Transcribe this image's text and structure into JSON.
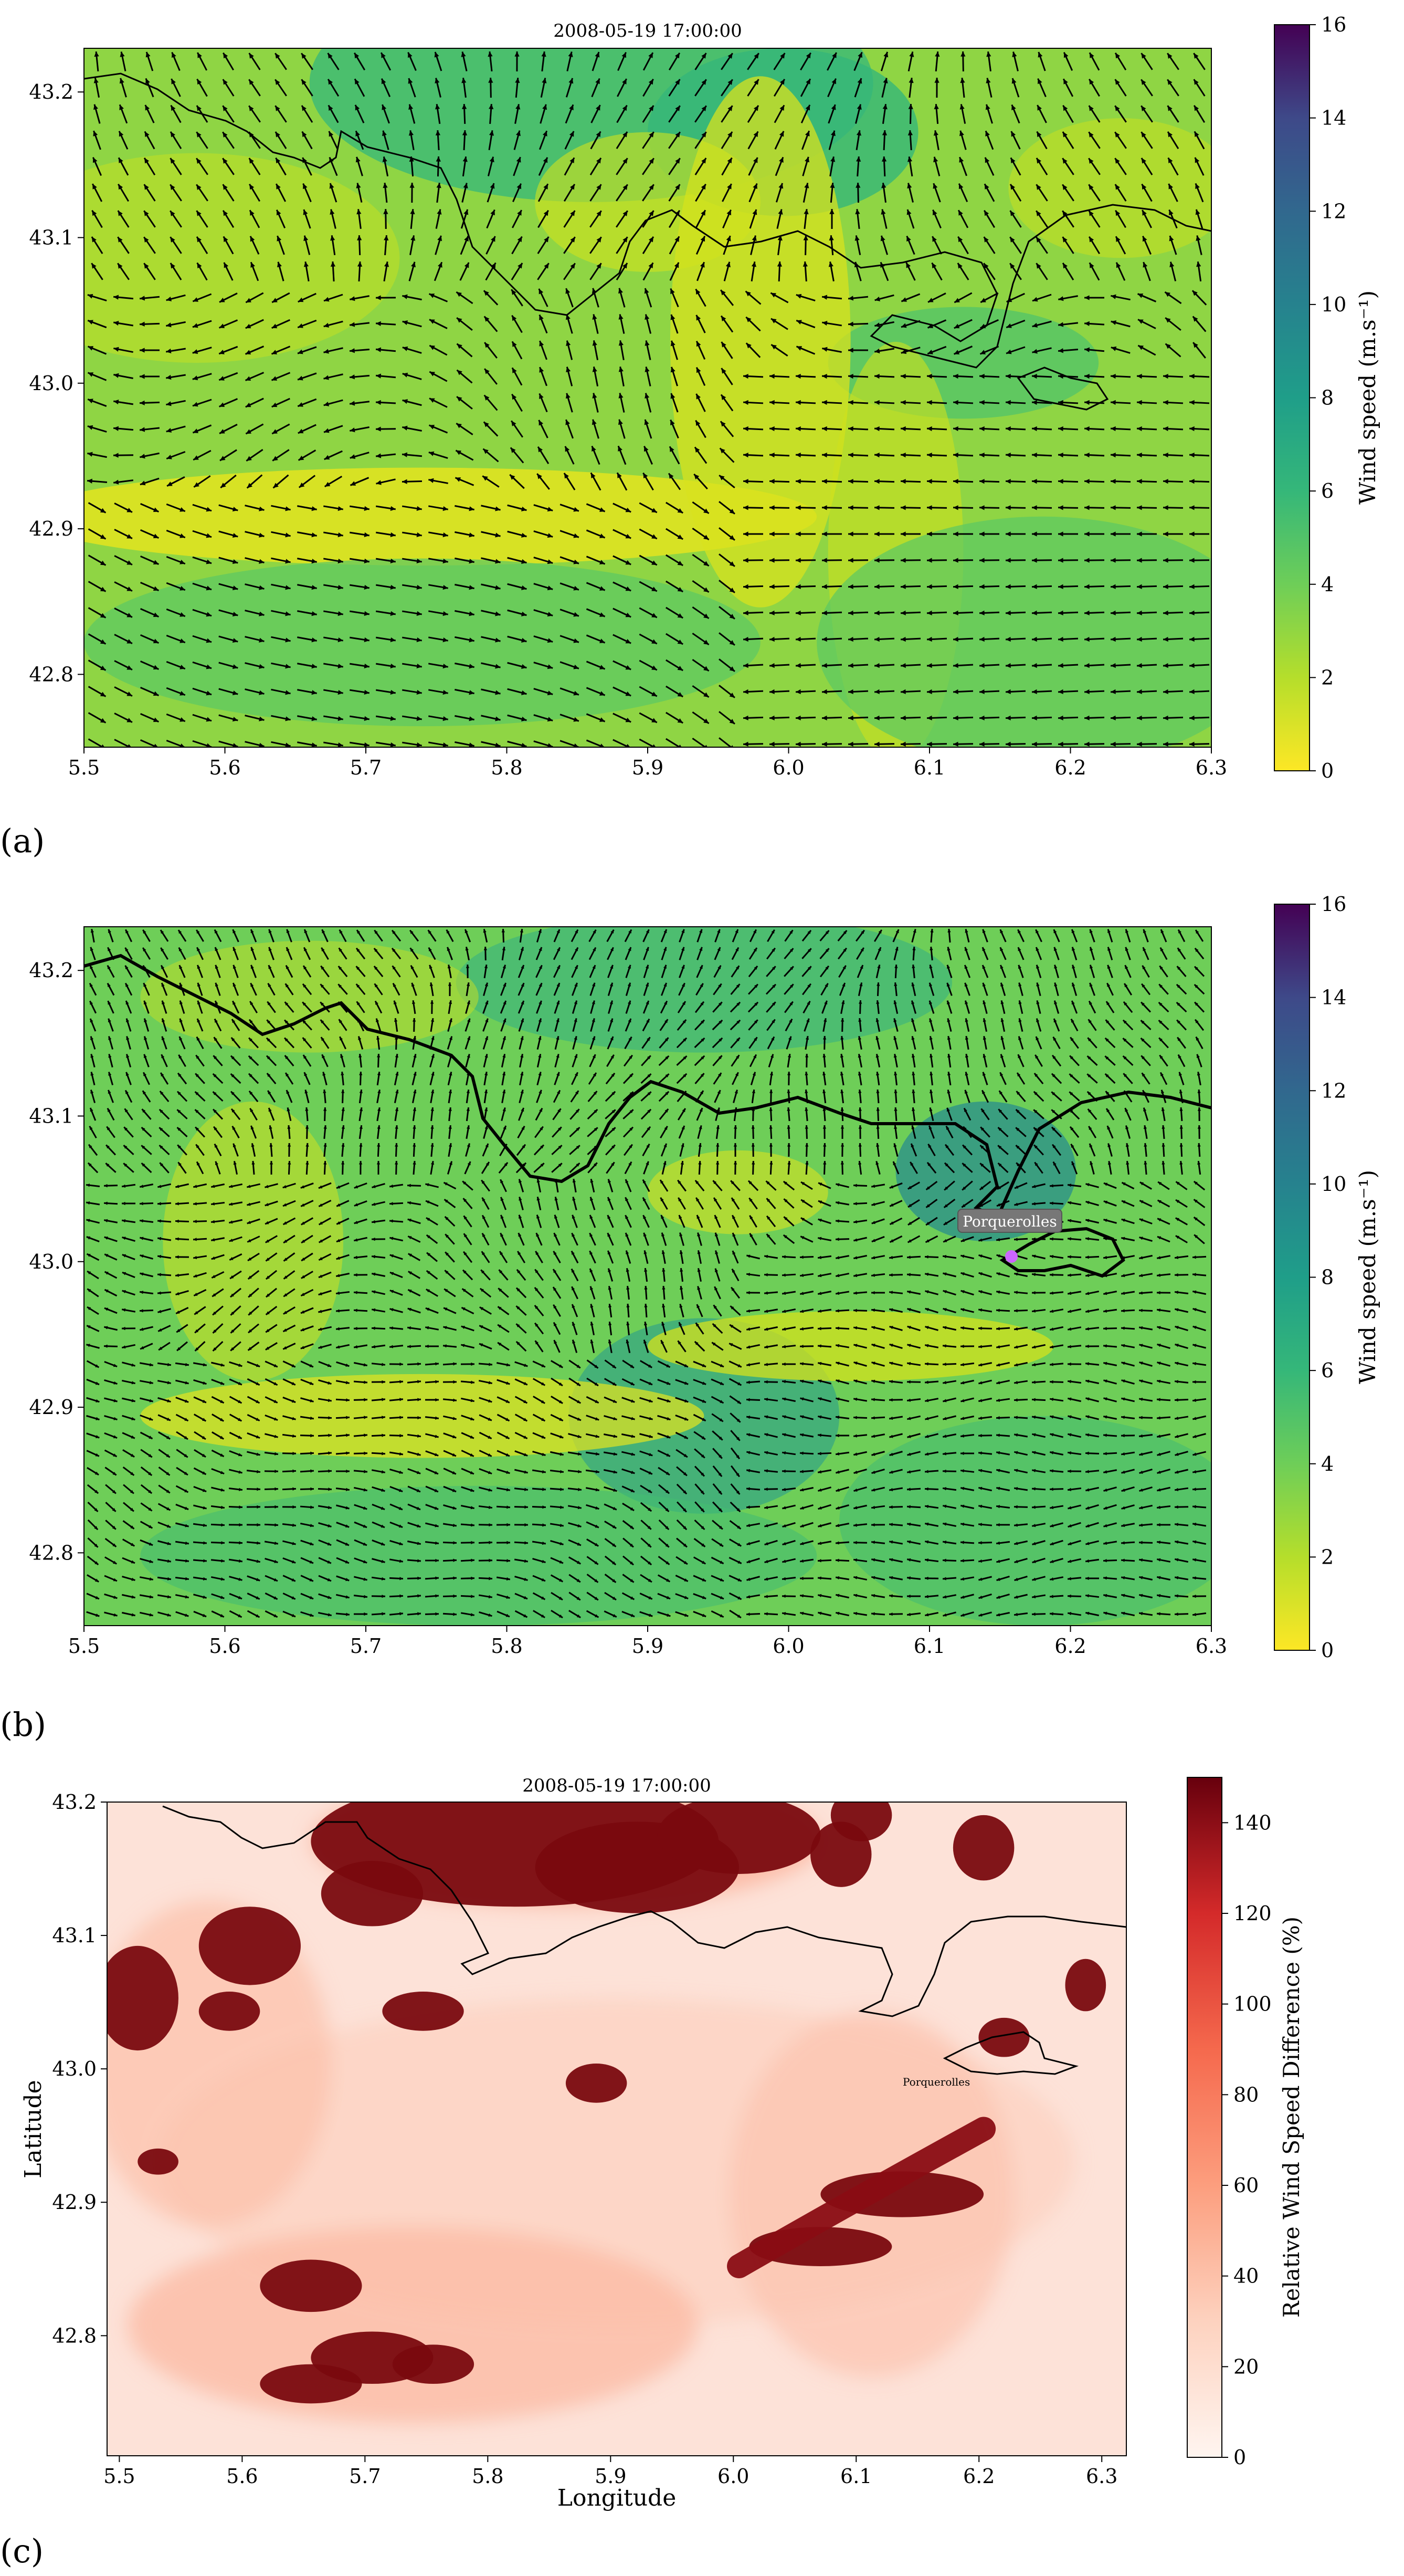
{
  "figure": {
    "panel_labels": [
      "(a)",
      "(b)",
      "(c)"
    ]
  },
  "chart_data": [
    {
      "id": "a",
      "type": "heatmap",
      "title": "2008-05-19 17:00:00",
      "xlabel": "",
      "ylabel": "",
      "xlim": [
        5.5,
        6.3
      ],
      "ylim": [
        42.75,
        43.23
      ],
      "xticks": [
        5.5,
        5.6,
        5.7,
        5.8,
        5.9,
        6.0,
        6.1,
        6.2,
        6.3
      ],
      "xtick_labels": [
        "5.5",
        "5.6",
        "5.7",
        "5.8",
        "5.9",
        "6.0",
        "6.1",
        "6.2",
        "6.3"
      ],
      "yticks": [
        42.8,
        42.9,
        43.0,
        43.1,
        43.2
      ],
      "ytick_labels": [
        "42.8",
        "42.9",
        "43.0",
        "43.1",
        "43.2"
      ],
      "colorbar": {
        "label": "Wind speed (m.s⁻¹)",
        "colormap": "viridis_r",
        "range": [
          0,
          16
        ],
        "ticks": [
          0,
          2,
          4,
          6,
          8,
          10,
          12,
          14,
          16
        ]
      },
      "overlay": "wind vectors (quiver) and coastline",
      "annotations": []
    },
    {
      "id": "b",
      "type": "heatmap",
      "title": "",
      "xlabel": "",
      "ylabel": "",
      "xlim": [
        5.5,
        6.3
      ],
      "ylim": [
        42.75,
        43.23
      ],
      "xticks": [
        5.5,
        5.6,
        5.7,
        5.8,
        5.9,
        6.0,
        6.1,
        6.2,
        6.3
      ],
      "xtick_labels": [
        "5.5",
        "5.6",
        "5.7",
        "5.8",
        "5.9",
        "6.0",
        "6.1",
        "6.2",
        "6.3"
      ],
      "yticks": [
        42.8,
        42.9,
        43.0,
        43.1,
        43.2
      ],
      "ytick_labels": [
        "42.8",
        "42.9",
        "43.0",
        "43.1",
        "43.2"
      ],
      "colorbar": {
        "label": "Wind speed (m.s⁻¹)",
        "colormap": "viridis_r",
        "range": [
          0,
          16
        ],
        "ticks": [
          0,
          2,
          4,
          6,
          8,
          10,
          12,
          14,
          16
        ]
      },
      "overlay": "wind vectors (quiver) and coastline",
      "annotations": [
        {
          "text": "Porquerolles",
          "lon": 6.16,
          "lat": 43.01,
          "boxed": true,
          "marker_color": "#cc66ff"
        }
      ]
    },
    {
      "id": "c",
      "type": "heatmap",
      "title": "2008-05-19 17:00:00",
      "xlabel": "Longitude",
      "ylabel": "Latitude",
      "xlim": [
        5.49,
        6.32
      ],
      "ylim": [
        42.71,
        43.2
      ],
      "xticks": [
        5.5,
        5.6,
        5.7,
        5.8,
        5.9,
        6.0,
        6.1,
        6.2,
        6.3
      ],
      "xtick_labels": [
        "5.5",
        "5.6",
        "5.7",
        "5.8",
        "5.9",
        "6.0",
        "6.1",
        "6.2",
        "6.3"
      ],
      "yticks": [
        42.8,
        42.9,
        43.0,
        43.1,
        43.2
      ],
      "ytick_labels": [
        "42.8",
        "42.9",
        "43.0",
        "43.1",
        "43.2"
      ],
      "colorbar": {
        "label": "Relative Wind Speed Difference (%)",
        "colormap": "Reds",
        "range": [
          0,
          150
        ],
        "ticks": [
          0,
          20,
          40,
          60,
          80,
          100,
          120,
          140
        ]
      },
      "overlay": "coastline",
      "annotations": [
        {
          "text": "Porquerolles",
          "lon": 6.15,
          "lat": 42.985,
          "boxed": false
        }
      ]
    }
  ]
}
